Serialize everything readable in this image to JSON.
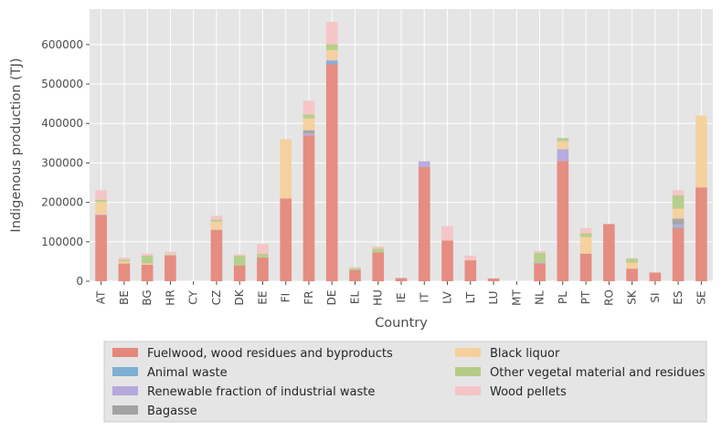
{
  "chart_data": {
    "type": "bar",
    "stacked": true,
    "xlabel": "Country",
    "ylabel": "Indigenous production (TJ)",
    "ylim": [
      0,
      690000
    ],
    "yticks": [
      0,
      100000,
      200000,
      300000,
      400000,
      500000,
      600000
    ],
    "ytick_labels": [
      "0",
      "100000",
      "200000",
      "300000",
      "400000",
      "500000",
      "600000"
    ],
    "grid": true,
    "legend_position": "bottom, outside plot, 2 columns",
    "categories": [
      "AT",
      "BE",
      "BG",
      "HR",
      "CY",
      "CZ",
      "DK",
      "EE",
      "FI",
      "FR",
      "DE",
      "EL",
      "HU",
      "IE",
      "IT",
      "LV",
      "LT",
      "LU",
      "MT",
      "NL",
      "PL",
      "PT",
      "RO",
      "SK",
      "SI",
      "ES",
      "SE"
    ],
    "series": [
      {
        "name": "Fuelwood, wood residues and byproducts",
        "color": "#E5887B",
        "values": [
          167000,
          45000,
          42000,
          65000,
          0,
          130000,
          40000,
          60000,
          210000,
          370000,
          550000,
          28000,
          73000,
          8000,
          290000,
          103000,
          53000,
          7000,
          0,
          45000,
          305000,
          70000,
          145000,
          32000,
          22000,
          135000,
          238000
        ]
      },
      {
        "name": "Animal waste",
        "color": "#7FAFD3",
        "values": [
          0,
          0,
          0,
          0,
          0,
          0,
          0,
          0,
          0,
          0,
          8000,
          0,
          0,
          0,
          0,
          0,
          0,
          0,
          0,
          0,
          0,
          0,
          0,
          0,
          0,
          3000,
          0
        ]
      },
      {
        "name": "Renewable fraction of industrial waste",
        "color": "#B5A8DC",
        "values": [
          2000,
          0,
          0,
          0,
          0,
          1000,
          0,
          0,
          0,
          5000,
          3000,
          0,
          0,
          0,
          14000,
          0,
          0,
          0,
          0,
          2000,
          30000,
          0,
          0,
          0,
          0,
          5000,
          0
        ]
      },
      {
        "name": "Bagasse",
        "color": "#A3A3A3",
        "values": [
          0,
          0,
          0,
          0,
          0,
          0,
          0,
          0,
          0,
          8000,
          0,
          0,
          0,
          0,
          0,
          0,
          0,
          0,
          0,
          0,
          0,
          0,
          0,
          0,
          0,
          16000,
          0
        ]
      },
      {
        "name": "Black liquor",
        "color": "#F5D09C",
        "values": [
          32000,
          5000,
          3000,
          0,
          0,
          20000,
          0,
          0,
          150000,
          30000,
          25000,
          0,
          0,
          0,
          0,
          0,
          0,
          0,
          0,
          0,
          20000,
          42000,
          0,
          15000,
          0,
          25000,
          182000
        ]
      },
      {
        "name": "Other vegetal material and residues",
        "color": "#B5CC87",
        "values": [
          5000,
          5000,
          20000,
          2000,
          0,
          5000,
          25000,
          10000,
          0,
          10000,
          15000,
          5000,
          10000,
          0,
          0,
          0,
          0,
          0,
          0,
          25000,
          8000,
          10000,
          0,
          10000,
          0,
          34000,
          0
        ]
      },
      {
        "name": "Wood pellets",
        "color": "#F5C4C6",
        "values": [
          25000,
          5000,
          5000,
          8000,
          0,
          10000,
          3000,
          25000,
          0,
          35000,
          57000,
          3000,
          5000,
          0,
          0,
          37000,
          12000,
          0,
          0,
          5000,
          0,
          13000,
          0,
          2000,
          0,
          13000,
          0
        ]
      }
    ]
  }
}
